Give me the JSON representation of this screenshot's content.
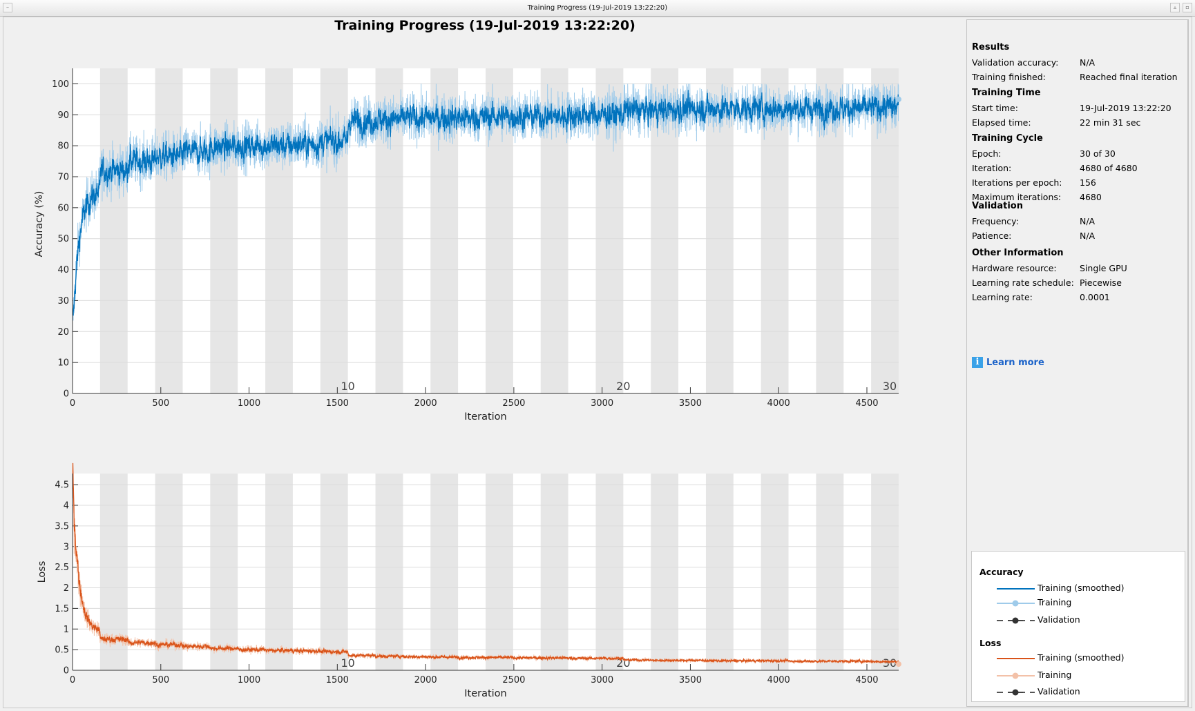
{
  "window": {
    "title": "Training Progress (19-Jul-2019 13:22:20)"
  },
  "main_title": "Training Progress (19-Jul-2019 13:22:20)",
  "colors": {
    "acc_smooth": "#0072bd",
    "acc_raw": "#9fcbea",
    "loss_smooth": "#d95319",
    "loss_raw": "#f3c1a8",
    "epoch_shade": "#e6e6e6",
    "grid": "#dcdcdc"
  },
  "chart_data": [
    {
      "type": "line",
      "name": "accuracy",
      "xlabel": "Iteration",
      "ylabel": "Accuracy (%)",
      "xlim": [
        0,
        4680
      ],
      "ylim": [
        0,
        105
      ],
      "xticks": [
        0,
        500,
        1000,
        1500,
        2000,
        2500,
        3000,
        3500,
        4000,
        4500
      ],
      "xtick_labels": [
        "0",
        "500",
        "1000",
        "1500",
        "2000",
        "2500",
        "3000",
        "3500",
        "4000",
        "4500"
      ],
      "yticks": [
        0,
        10,
        20,
        30,
        40,
        50,
        60,
        70,
        80,
        90,
        100
      ],
      "ytick_labels": [
        "0",
        "10",
        "20",
        "30",
        "40",
        "50",
        "60",
        "70",
        "80",
        "90",
        "100"
      ],
      "iterations_per_epoch": 156,
      "epoch_labels": [
        {
          "epoch": 10,
          "iteration": 1560,
          "label": "10"
        },
        {
          "epoch": 20,
          "iteration": 3120,
          "label": "20"
        },
        {
          "epoch": 30,
          "iteration": 4680,
          "label": "30"
        }
      ],
      "start_value": 20,
      "epoch_mean_values": [
        62,
        72,
        75,
        76.5,
        78,
        79.5,
        80,
        80,
        80.5,
        81.5,
        88,
        88.5,
        89,
        89,
        89,
        89.5,
        89.5,
        89.5,
        90,
        90,
        91.5,
        91.5,
        92,
        92,
        92,
        92,
        92,
        92,
        92,
        92.5
      ],
      "raw_noise": 4,
      "final_raw": 95,
      "series": [
        {
          "name": "Training (smoothed)"
        },
        {
          "name": "Training"
        }
      ]
    },
    {
      "type": "line",
      "name": "loss",
      "xlabel": "Iteration",
      "ylabel": "Loss",
      "xlim": [
        0,
        4680
      ],
      "ylim": [
        0,
        4.77
      ],
      "xticks": [
        0,
        500,
        1000,
        1500,
        2000,
        2500,
        3000,
        3500,
        4000,
        4500
      ],
      "xtick_labels": [
        "0",
        "500",
        "1000",
        "1500",
        "2000",
        "2500",
        "3000",
        "3500",
        "4000",
        "4500"
      ],
      "yticks": [
        0,
        0.5,
        1,
        1.5,
        2,
        2.5,
        3,
        3.5,
        4,
        4.5
      ],
      "ytick_labels": [
        "0",
        "0.5",
        "1",
        "1.5",
        "2",
        "2.5",
        "3",
        "3.5",
        "4",
        "4.5"
      ],
      "iterations_per_epoch": 156,
      "epoch_labels": [
        {
          "epoch": 10,
          "iteration": 1560,
          "label": "10"
        },
        {
          "epoch": 20,
          "iteration": 3120,
          "label": "20"
        },
        {
          "epoch": 30,
          "iteration": 4680,
          "label": "30"
        }
      ],
      "start_value": 4.5,
      "epoch_mean_values": [
        1.0,
        0.75,
        0.67,
        0.62,
        0.58,
        0.53,
        0.5,
        0.48,
        0.47,
        0.45,
        0.36,
        0.34,
        0.33,
        0.32,
        0.31,
        0.31,
        0.3,
        0.3,
        0.29,
        0.29,
        0.25,
        0.24,
        0.24,
        0.23,
        0.23,
        0.23,
        0.22,
        0.22,
        0.22,
        0.21
      ],
      "raw_noise": 0.06,
      "final_raw": 0.15,
      "series": [
        {
          "name": "Training (smoothed)"
        },
        {
          "name": "Training"
        }
      ]
    }
  ],
  "panel": {
    "results": {
      "heading": "Results",
      "rows": [
        {
          "label": "Validation accuracy:",
          "value": "N/A"
        },
        {
          "label": "Training finished:",
          "value": "Reached final iteration"
        }
      ]
    },
    "training_time": {
      "heading": "Training Time",
      "rows": [
        {
          "label": "Start time:",
          "value": "19-Jul-2019 13:22:20"
        },
        {
          "label": "Elapsed time:",
          "value": "22 min 31 sec"
        }
      ]
    },
    "training_cycle": {
      "heading": "Training Cycle",
      "rows": [
        {
          "label": "Epoch:",
          "value": "30 of 30"
        },
        {
          "label": "Iteration:",
          "value": "4680 of 4680"
        },
        {
          "label": "Iterations per epoch:",
          "value": "156"
        },
        {
          "label": "Maximum iterations:",
          "value": "4680"
        }
      ]
    },
    "validation": {
      "heading": "Validation",
      "rows": [
        {
          "label": "Frequency:",
          "value": "N/A"
        },
        {
          "label": "Patience:",
          "value": "N/A"
        }
      ]
    },
    "other": {
      "heading": "Other Information",
      "rows": [
        {
          "label": "Hardware resource:",
          "value": "Single GPU"
        },
        {
          "label": "Learning rate schedule:",
          "value": "Piecewise"
        },
        {
          "label": "Learning rate:",
          "value": "0.0001"
        }
      ]
    },
    "learn_more": "Learn more",
    "learn_more_icon": "info-icon"
  },
  "legend": {
    "accuracy_heading": "Accuracy",
    "loss_heading": "Loss",
    "items": [
      "Training (smoothed)",
      "Training",
      "Validation"
    ]
  }
}
